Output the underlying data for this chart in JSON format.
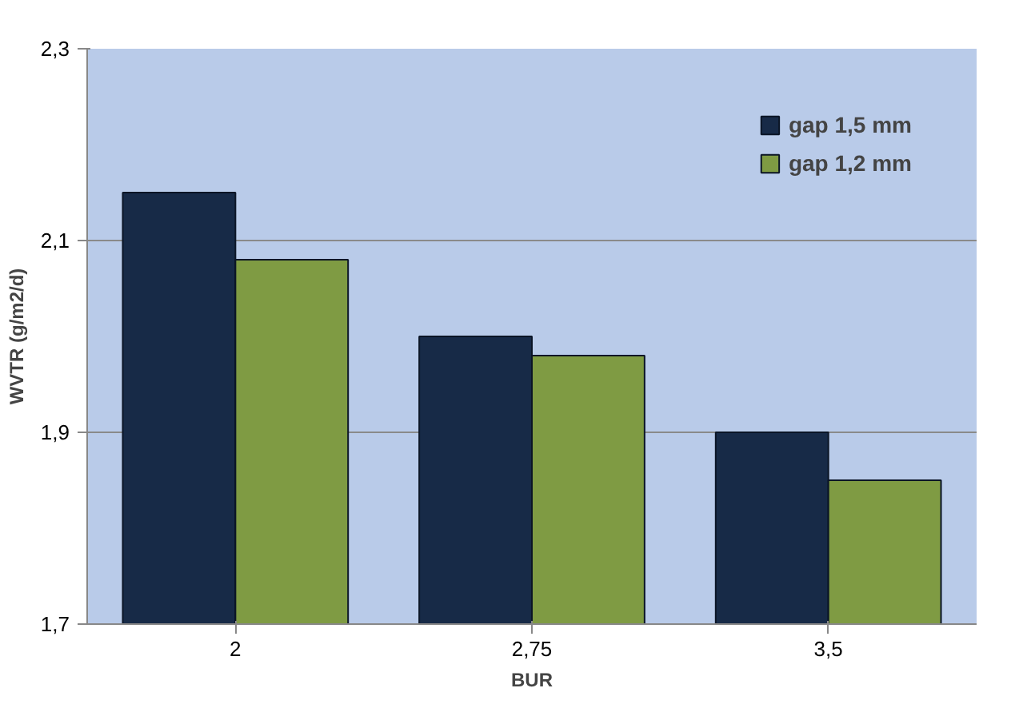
{
  "chart_data": {
    "type": "bar",
    "xlabel": "BUR",
    "ylabel": "WVTR (g/m2/d)",
    "categories": [
      "2",
      "2,75",
      "3,5"
    ],
    "series": [
      {
        "name": "gap 1,5 mm",
        "color": "#172a47",
        "values": [
          2.15,
          2.0,
          1.9
        ]
      },
      {
        "name": "gap 1,2 mm",
        "color": "#7f9b43",
        "values": [
          2.08,
          1.98,
          1.85
        ]
      }
    ],
    "ylim": [
      1.7,
      2.3
    ],
    "yticks": [
      {
        "value": 1.7,
        "label": "1,7"
      },
      {
        "value": 1.9,
        "label": "1,9"
      },
      {
        "value": 2.1,
        "label": "2,1"
      },
      {
        "value": 2.3,
        "label": "2,3"
      }
    ],
    "grid": "y",
    "legend": "top right"
  }
}
